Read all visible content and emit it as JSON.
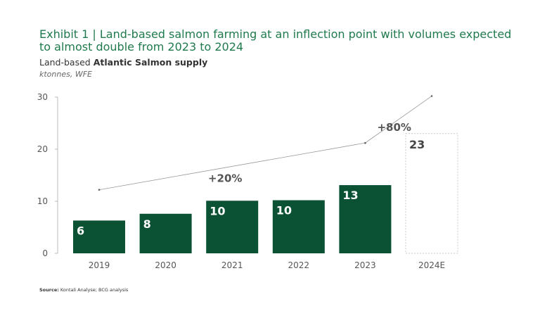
{
  "header": {
    "title": "Exhibit 1 | Land-based salmon farming at an inflection point with volumes expected to almost double from 2023 to 2024",
    "subtitle_prefix": "Land-based ",
    "subtitle_bold": "Atlantic Salmon supply",
    "units": "ktonnes, WFE"
  },
  "footer": {
    "source_label": "Source:",
    "source_text": " Kontali Analyse; BCG analysis"
  },
  "colors": {
    "bar": "#0b5133",
    "forecast_border": "#c8c8c8",
    "title": "#1f7a4d"
  },
  "chart_data": {
    "type": "bar",
    "categories": [
      "2019",
      "2020",
      "2021",
      "2022",
      "2023",
      "2024E"
    ],
    "values": [
      6.3,
      7.6,
      10.1,
      10.2,
      13.1,
      23.0
    ],
    "labels": [
      "6",
      "8",
      "10",
      "10",
      "13",
      "23"
    ],
    "forecast": [
      false,
      false,
      false,
      false,
      false,
      true
    ],
    "ylim": [
      0,
      30
    ],
    "yticks": [
      0,
      10,
      20,
      30
    ],
    "grid": false,
    "trend_lines": [
      {
        "label": "+20%",
        "from": {
          "x": "2019",
          "y": 12.2
        },
        "to": {
          "x": "2023",
          "y": 21.2
        }
      },
      {
        "label": "+80%",
        "from": {
          "x": "2023",
          "y": 21.2
        },
        "to": {
          "x": "2024E",
          "y": 30.2
        }
      }
    ]
  }
}
